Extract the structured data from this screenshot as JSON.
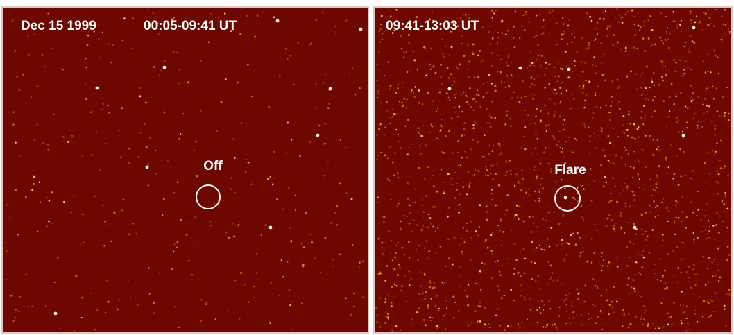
{
  "panels": [
    {
      "date": "Dec 15 1999",
      "time": "00:05-09:41 UT",
      "label": "Off"
    },
    {
      "time": "09:41-13:03 UT",
      "label": "Flare"
    }
  ]
}
